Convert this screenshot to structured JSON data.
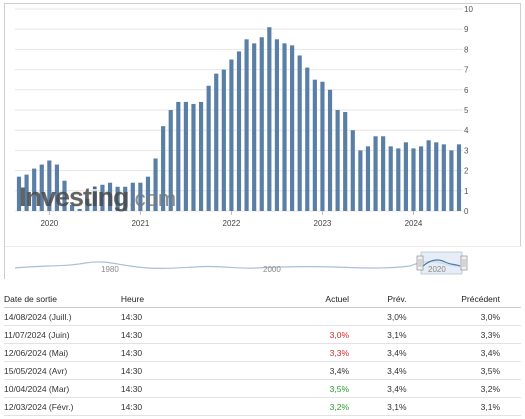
{
  "chart_data": {
    "type": "bar",
    "x": [
      "2019-09",
      "2019-10",
      "2019-11",
      "2019-12",
      "2020-01",
      "2020-02",
      "2020-03",
      "2020-04",
      "2020-05",
      "2020-06",
      "2020-07",
      "2020-08",
      "2020-09",
      "2020-10",
      "2020-11",
      "2020-12",
      "2021-01",
      "2021-02",
      "2021-03",
      "2021-04",
      "2021-05",
      "2021-06",
      "2021-07",
      "2021-08",
      "2021-09",
      "2021-10",
      "2021-11",
      "2021-12",
      "2022-01",
      "2022-02",
      "2022-03",
      "2022-04",
      "2022-05",
      "2022-06",
      "2022-07",
      "2022-08",
      "2022-09",
      "2022-10",
      "2022-11",
      "2022-12",
      "2023-01",
      "2023-02",
      "2023-03",
      "2023-04",
      "2023-05",
      "2023-06",
      "2023-07",
      "2023-08",
      "2023-09",
      "2023-10",
      "2023-11",
      "2023-12",
      "2024-01",
      "2024-02",
      "2024-03",
      "2024-04",
      "2024-05",
      "2024-06",
      "2024-07"
    ],
    "values": [
      1.7,
      1.8,
      2.1,
      2.3,
      2.5,
      2.3,
      1.5,
      0.3,
      0.1,
      0.6,
      1.0,
      1.3,
      1.4,
      1.2,
      1.2,
      1.4,
      1.4,
      1.7,
      2.6,
      4.2,
      5.0,
      5.4,
      5.4,
      5.3,
      5.4,
      6.2,
      6.8,
      7.0,
      7.5,
      7.9,
      8.5,
      8.3,
      8.6,
      9.1,
      8.5,
      8.3,
      8.2,
      7.7,
      7.1,
      6.5,
      6.4,
      6.0,
      5.0,
      4.9,
      4.0,
      3.0,
      3.2,
      3.7,
      3.7,
      3.2,
      3.1,
      3.4,
      3.1,
      3.2,
      3.5,
      3.4,
      3.3,
      3.0,
      3.3
    ],
    "x_ticks": [
      "2020",
      "2021",
      "2022",
      "2023",
      "2024"
    ],
    "y_ticks": [
      "0",
      "1",
      "2",
      "3",
      "4",
      "5",
      "6",
      "7",
      "8",
      "9",
      "10"
    ],
    "ylim": [
      0,
      10
    ],
    "navigator_labels": [
      "1980",
      "2000",
      "2020"
    ],
    "bar_color": "#5a7fa6",
    "watermark": {
      "main": "Investing",
      "suffix": ".com"
    }
  },
  "table": {
    "headers": {
      "date": "Date de sortie",
      "time": "Heure",
      "actual": "Actuel",
      "prev": "Prév.",
      "preced": "Précédent"
    },
    "rows": [
      {
        "date": "14/08/2024 (Juill.)",
        "time": "14:30",
        "actual": "",
        "actual_status": "",
        "prev": "3,0%",
        "preced": "3,0%"
      },
      {
        "date": "11/07/2024 (Juin)",
        "time": "14:30",
        "actual": "3,0%",
        "actual_status": "red",
        "prev": "3,1%",
        "preced": "3,3%"
      },
      {
        "date": "12/06/2024 (Mai)",
        "time": "14:30",
        "actual": "3,3%",
        "actual_status": "red",
        "prev": "3,4%",
        "preced": "3,4%"
      },
      {
        "date": "15/05/2024 (Avr)",
        "time": "14:30",
        "actual": "3,4%",
        "actual_status": "",
        "prev": "3,4%",
        "preced": "3,5%"
      },
      {
        "date": "10/04/2024 (Mar)",
        "time": "14:30",
        "actual": "3,5%",
        "actual_status": "green",
        "prev": "3,4%",
        "preced": "3,2%"
      },
      {
        "date": "12/03/2024 (Févr.)",
        "time": "14:30",
        "actual": "3,2%",
        "actual_status": "green",
        "prev": "3,1%",
        "preced": "3,1%"
      }
    ]
  }
}
